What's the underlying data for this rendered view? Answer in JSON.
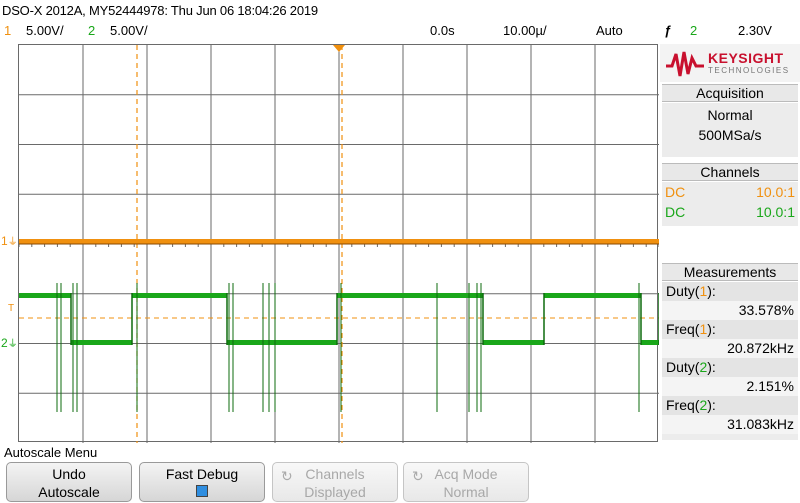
{
  "header": {
    "title": "DSO-X 2012A, MY52444978: Thu Jun 06 18:04:26 2019",
    "ch1_num": "1",
    "ch1_scale": "5.00V/",
    "ch2_num": "2",
    "ch2_scale": "5.00V/",
    "time_pos": "0.0s",
    "time_scale": "10.00µ/",
    "trigger_mode": "Auto",
    "trigger_icon": "ƒ",
    "trigger_src": "2",
    "trigger_level": "2.30V"
  },
  "graticule": {
    "ch1_marker": "1",
    "ch2_marker": "2",
    "trig_marker": "T"
  },
  "panel": {
    "logo": "KEYSIGHT",
    "logo_sub": "TECHNOLOGIES",
    "acquisition": {
      "title": "Acquisition",
      "mode": "Normal",
      "rate": "500MSa/s"
    },
    "channels": {
      "title": "Channels",
      "rows": [
        {
          "coupling": "DC",
          "probe": "10.0:1"
        },
        {
          "coupling": "DC",
          "probe": "10.0:1"
        }
      ]
    },
    "measurements": {
      "title": "Measurements",
      "items": [
        {
          "label_pre": "Duty(",
          "ch": "1",
          "label_post": "):",
          "value": "33.578%"
        },
        {
          "label_pre": "Freq(",
          "ch": "1",
          "label_post": "):",
          "value": "20.872kHz"
        },
        {
          "label_pre": "Duty(",
          "ch": "2",
          "label_post": "):",
          "value": "2.151%"
        },
        {
          "label_pre": "Freq(",
          "ch": "2",
          "label_post": "):",
          "value": "31.083kHz"
        }
      ]
    }
  },
  "menu": {
    "title": "Autoscale Menu",
    "keys": [
      {
        "line1": "Undo",
        "line2": "Autoscale"
      },
      {
        "line1": "Fast Debug",
        "line2": ""
      },
      {
        "line1": "Channels",
        "line2": "Displayed"
      },
      {
        "line1": "Acq Mode",
        "line2": "Normal"
      }
    ]
  },
  "colors": {
    "ch1": "#f0900f",
    "ch2": "#1aa71a",
    "ch2_dark": "#0d6b0d",
    "grid": "#6a6a6a",
    "cursor": "#f0900f"
  }
}
